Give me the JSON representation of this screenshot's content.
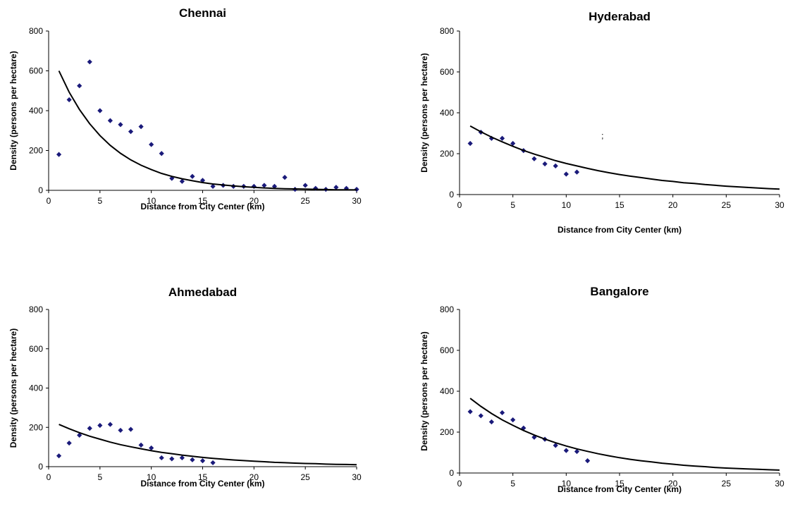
{
  "chart_data": [
    {
      "type": "scatter",
      "title": "Chennai",
      "xlabel": "Distance from City Center (km)",
      "ylabel": "Density (persons per hectare)",
      "xlim": [
        0,
        30
      ],
      "ylim": [
        0,
        800
      ],
      "xticks": [
        0,
        5,
        10,
        15,
        20,
        25,
        30
      ],
      "yticks": [
        0,
        200,
        400,
        600,
        800
      ],
      "grid": false,
      "marker_color": "#1a1a7a",
      "series": [
        {
          "type": "scatter",
          "x": [
            1,
            2,
            3,
            4,
            5,
            6,
            7,
            8,
            9,
            10,
            11,
            12,
            13,
            14,
            15,
            16,
            17,
            18,
            19,
            20,
            21,
            22,
            23,
            24,
            25,
            26,
            27,
            28,
            29,
            30
          ],
          "y": [
            180,
            455,
            525,
            645,
            400,
            350,
            330,
            295,
            320,
            230,
            185,
            60,
            45,
            70,
            50,
            20,
            25,
            20,
            20,
            20,
            25,
            20,
            65,
            5,
            25,
            10,
            5,
            15,
            10,
            5
          ]
        },
        {
          "type": "line",
          "x": [
            1,
            2,
            3,
            4,
            5,
            6,
            7,
            8,
            9,
            10,
            11,
            12,
            13,
            14,
            15,
            16,
            17,
            18,
            19,
            20,
            21,
            22,
            23,
            24,
            25,
            26,
            27,
            28,
            29,
            30
          ],
          "y": [
            600,
            493,
            406,
            334,
            275,
            226,
            186,
            153,
            126,
            104,
            85,
            70,
            58,
            48,
            39,
            32,
            27,
            22,
            18,
            15,
            12,
            10,
            8,
            7,
            6,
            5,
            4,
            3,
            3,
            2
          ]
        }
      ]
    },
    {
      "type": "scatter",
      "title": "Hyderabad",
      "xlabel": "Distance from City Center (km)",
      "ylabel": "Density (persons per hectare)",
      "xlim": [
        0,
        30
      ],
      "ylim": [
        0,
        800
      ],
      "xticks": [
        0,
        5,
        10,
        15,
        20,
        25,
        30
      ],
      "yticks": [
        0,
        200,
        400,
        600,
        800
      ],
      "grid": false,
      "marker_color": "#1a1a7a",
      "annotation": ";",
      "series": [
        {
          "type": "scatter",
          "x": [
            1,
            2,
            3,
            4,
            5,
            6,
            7,
            8,
            9,
            10,
            11
          ],
          "y": [
            250,
            305,
            275,
            275,
            250,
            215,
            175,
            150,
            140,
            100,
            110
          ]
        },
        {
          "type": "line",
          "x": [
            1,
            2,
            3,
            4,
            5,
            6,
            7,
            8,
            9,
            10,
            11,
            12,
            13,
            14,
            15,
            16,
            17,
            18,
            19,
            20,
            21,
            22,
            23,
            24,
            25,
            26,
            27,
            28,
            29,
            30
          ],
          "y": [
            335,
            307,
            281,
            258,
            236,
            216,
            198,
            182,
            166,
            152,
            140,
            128,
            117,
            107,
            98,
            90,
            83,
            76,
            69,
            64,
            58,
            54,
            49,
            45,
            41,
            38,
            35,
            32,
            29,
            27
          ]
        }
      ]
    },
    {
      "type": "scatter",
      "title": "Ahmedabad",
      "xlabel": "Distance from City Center (km)",
      "ylabel": "Density (persons per hectare)",
      "xlim": [
        0,
        30
      ],
      "ylim": [
        0,
        800
      ],
      "xticks": [
        0,
        5,
        10,
        15,
        20,
        25,
        30
      ],
      "yticks": [
        0,
        200,
        400,
        600,
        800
      ],
      "grid": false,
      "marker_color": "#1a1a7a",
      "series": [
        {
          "type": "scatter",
          "x": [
            1,
            2,
            3,
            4,
            5,
            6,
            7,
            8,
            9,
            10,
            11,
            12,
            13,
            14,
            15,
            16
          ],
          "y": [
            55,
            120,
            160,
            195,
            210,
            215,
            185,
            190,
            110,
            95,
            45,
            40,
            45,
            35,
            30,
            20
          ]
        },
        {
          "type": "line",
          "x": [
            1,
            2,
            3,
            4,
            5,
            6,
            7,
            8,
            9,
            10,
            11,
            12,
            13,
            14,
            15,
            16,
            17,
            18,
            19,
            20,
            21,
            22,
            23,
            24,
            25,
            26,
            27,
            28,
            29,
            30
          ],
          "y": [
            215,
            193,
            173,
            155,
            140,
            125,
            112,
            101,
            91,
            81,
            73,
            66,
            59,
            53,
            47,
            42,
            38,
            34,
            31,
            28,
            25,
            22,
            20,
            18,
            16,
            15,
            13,
            12,
            11,
            10
          ]
        }
      ]
    },
    {
      "type": "scatter",
      "title": "Bangalore",
      "xlabel": "Distance from City Center (km)",
      "ylabel": "Density (persons per hectare)",
      "xlim": [
        0,
        30
      ],
      "ylim": [
        0,
        800
      ],
      "xticks": [
        0,
        5,
        10,
        15,
        20,
        25,
        30
      ],
      "yticks": [
        0,
        200,
        400,
        600,
        800
      ],
      "grid": false,
      "marker_color": "#1a1a7a",
      "series": [
        {
          "type": "scatter",
          "x": [
            1,
            2,
            3,
            4,
            5,
            6,
            7,
            8,
            9,
            10,
            11,
            12
          ],
          "y": [
            300,
            280,
            250,
            295,
            260,
            220,
            175,
            165,
            135,
            110,
            105,
            60
          ]
        },
        {
          "type": "line",
          "x": [
            1,
            2,
            3,
            4,
            5,
            6,
            7,
            8,
            9,
            10,
            11,
            12,
            13,
            14,
            15,
            16,
            17,
            18,
            19,
            20,
            21,
            22,
            23,
            24,
            25,
            26,
            27,
            28,
            29,
            30
          ],
          "y": [
            365,
            326,
            291,
            260,
            233,
            208,
            186,
            166,
            148,
            132,
            118,
            106,
            94,
            84,
            75,
            67,
            60,
            54,
            48,
            43,
            38,
            34,
            31,
            27,
            24,
            22,
            20,
            18,
            16,
            14
          ]
        }
      ]
    }
  ]
}
